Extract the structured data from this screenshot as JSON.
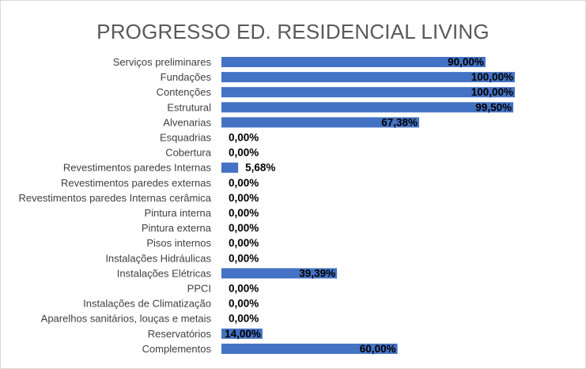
{
  "chart_data": {
    "type": "bar",
    "orientation": "horizontal",
    "title": "PROGRESSO ED. RESIDENCIAL LIVING",
    "xlabel": "",
    "ylabel": "",
    "xlim": [
      0,
      100
    ],
    "grid": false,
    "legend": "none",
    "bar_color": "#4472C4",
    "categories": [
      "Serviços preliminares",
      "Fundações",
      "Contenções",
      "Estrutural",
      "Alvenarias",
      "Esquadrias",
      "Cobertura",
      "Revestimentos paredes Internas",
      "Revestimentos paredes externas",
      "Revestimentos paredes Internas cerâmica",
      "Pintura interna",
      "Pintura externa",
      "Pisos internos",
      "Instalações Hidráulicas",
      "Instalações Elétricas",
      "PPCI",
      "Instalações de Climatização",
      "Aparelhos sanitários, louças e metais",
      "Reservatórios",
      "Complementos"
    ],
    "values": [
      90,
      100,
      100,
      99.5,
      67.38,
      0,
      0,
      5.68,
      0,
      0,
      0,
      0,
      0,
      0,
      39.39,
      0,
      0,
      0,
      14,
      60
    ],
    "data_labels": [
      "90,00%",
      "100,00%",
      "100,00%",
      "99,50%",
      "67,38%",
      "0,00%",
      "0,00%",
      "5,68%",
      "0,00%",
      "0,00%",
      "0,00%",
      "0,00%",
      "0,00%",
      "0,00%",
      "39,39%",
      "0,00%",
      "0,00%",
      "0,00%",
      "14,00%",
      "60,00%"
    ]
  }
}
